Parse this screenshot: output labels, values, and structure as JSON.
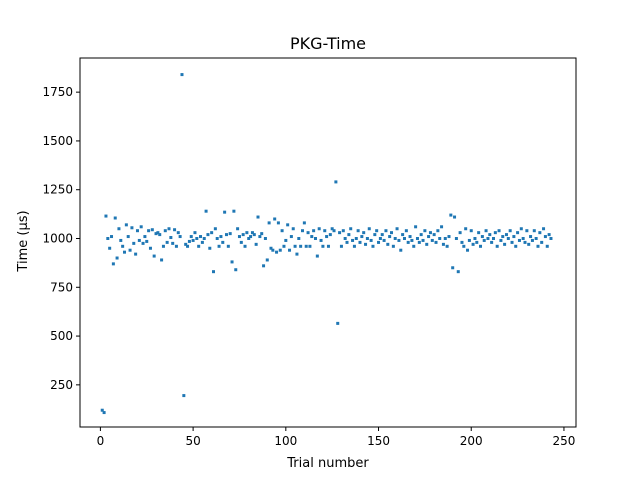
{
  "chart_data": {
    "type": "scatter",
    "title": "PKG-Time",
    "x_label": "Trial number",
    "y_label": "Time (μs)",
    "color": "#1f77b4",
    "xlim": [
      -11,
      256.5
    ],
    "ylim": [
      34,
      1925
    ],
    "xticks": [
      0,
      50,
      100,
      150,
      200,
      250
    ],
    "yticks": [
      250,
      500,
      750,
      1000,
      1250,
      1500,
      1750
    ],
    "x": [
      1,
      2,
      3,
      4,
      5,
      6,
      7,
      8,
      9,
      10,
      11,
      12,
      13,
      14,
      15,
      16,
      17,
      18,
      19,
      20,
      21,
      22,
      23,
      24,
      25,
      26,
      27,
      28,
      29,
      30,
      31,
      32,
      33,
      34,
      35,
      36,
      37,
      38,
      39,
      40,
      41,
      42,
      43,
      44,
      45,
      46,
      47,
      48,
      49,
      50,
      51,
      52,
      53,
      54,
      55,
      56,
      57,
      58,
      59,
      60,
      61,
      62,
      63,
      64,
      65,
      66,
      67,
      68,
      69,
      70,
      71,
      72,
      73,
      74,
      75,
      76,
      77,
      78,
      79,
      80,
      81,
      82,
      83,
      84,
      85,
      86,
      87,
      88,
      89,
      90,
      91,
      92,
      93,
      94,
      95,
      96,
      97,
      98,
      99,
      100,
      101,
      102,
      103,
      104,
      105,
      106,
      107,
      108,
      109,
      110,
      111,
      112,
      113,
      114,
      115,
      116,
      117,
      118,
      119,
      120,
      121,
      122,
      123,
      124,
      125,
      126,
      127,
      128,
      129,
      130,
      131,
      132,
      133,
      134,
      135,
      136,
      137,
      138,
      139,
      140,
      141,
      142,
      143,
      144,
      145,
      146,
      147,
      148,
      149,
      150,
      151,
      152,
      153,
      154,
      155,
      156,
      157,
      158,
      159,
      160,
      161,
      162,
      163,
      164,
      165,
      166,
      167,
      168,
      169,
      170,
      171,
      172,
      173,
      174,
      175,
      176,
      177,
      178,
      179,
      180,
      181,
      182,
      183,
      184,
      185,
      186,
      187,
      188,
      189,
      190,
      191,
      192,
      193,
      194,
      195,
      196,
      197,
      198,
      199,
      200,
      201,
      202,
      203,
      204,
      205,
      206,
      207,
      208,
      209,
      210,
      211,
      212,
      213,
      214,
      215,
      216,
      217,
      218,
      219,
      220,
      221,
      222,
      223,
      224,
      225,
      226,
      227,
      228,
      229,
      230,
      231,
      232,
      233,
      234,
      235,
      236,
      237,
      238,
      239,
      240,
      241,
      242,
      243
    ],
    "values": [
      120,
      108,
      1115,
      1000,
      950,
      1010,
      870,
      1105,
      900,
      1050,
      990,
      960,
      930,
      1070,
      1010,
      940,
      1055,
      975,
      920,
      1040,
      990,
      1060,
      975,
      1010,
      985,
      1040,
      950,
      1045,
      910,
      1025,
      1030,
      1020,
      890,
      960,
      1040,
      980,
      1050,
      1005,
      975,
      1045,
      960,
      1030,
      1010,
      1840,
      195,
      970,
      960,
      985,
      1010,
      990,
      1030,
      1000,
      960,
      1010,
      980,
      1000,
      1140,
      1020,
      950,
      1030,
      830,
      1050,
      1000,
      960,
      1010,
      980,
      1135,
      1020,
      960,
      1025,
      880,
      1140,
      840,
      1050,
      1010,
      980,
      1020,
      960,
      1030,
      1000,
      1010,
      1030,
      1020,
      970,
      1110,
      1010,
      1025,
      860,
      1000,
      890,
      1080,
      950,
      940,
      1100,
      930,
      1080,
      940,
      1040,
      960,
      990,
      1070,
      940,
      1010,
      1050,
      960,
      920,
      1000,
      960,
      1040,
      1080,
      960,
      1030,
      960,
      1010,
      1040,
      1000,
      910,
      1050,
      990,
      960,
      1040,
      1010,
      960,
      1020,
      1050,
      1040,
      1290,
      565,
      1030,
      960,
      1040,
      1000,
      980,
      1020,
      1050,
      990,
      960,
      1000,
      1040,
      980,
      1010,
      1030,
      970,
      1000,
      1050,
      990,
      960,
      1020,
      1040,
      980,
      1000,
      1020,
      990,
      1040,
      970,
      1010,
      1030,
      960,
      1000,
      1050,
      990,
      940,
      1020,
      1000,
      1040,
      980,
      1010,
      990,
      960,
      1060,
      1000,
      980,
      1020,
      990,
      1040,
      970,
      1010,
      1030,
      990,
      1020,
      980,
      1040,
      1000,
      1060,
      970,
      1000,
      960,
      1010,
      1120,
      850,
      1110,
      1000,
      830,
      1030,
      980,
      960,
      1050,
      940,
      990,
      1040,
      970,
      1000,
      980,
      1030,
      960,
      1010,
      990,
      1040,
      1000,
      1020,
      980,
      1000,
      1030,
      960,
      1040,
      990,
      1010,
      970,
      1020,
      1000,
      1040,
      980,
      1010,
      960,
      1030,
      990,
      1050,
      1000,
      980,
      1040,
      970,
      1010,
      990,
      1040,
      1000,
      960,
      1030,
      980,
      1050,
      1010,
      960,
      1020,
      1000
    ]
  }
}
